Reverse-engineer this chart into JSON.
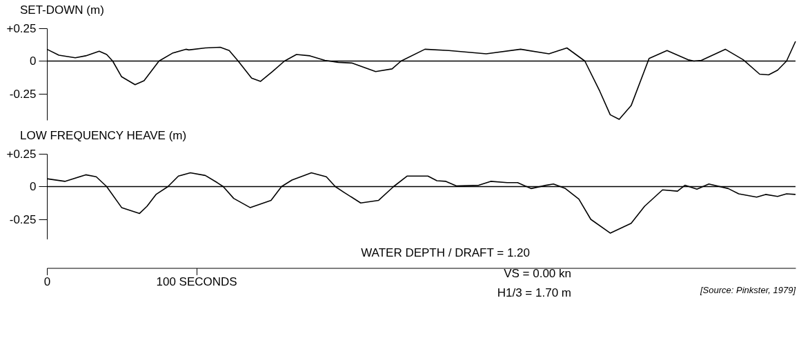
{
  "chart_data": [
    {
      "type": "line",
      "title": "SET-DOWN (m)",
      "x": [
        0,
        8,
        19,
        26,
        35,
        40,
        44,
        50,
        59,
        65,
        75,
        84,
        93,
        95,
        106,
        116,
        122,
        128,
        137,
        143,
        151,
        159,
        167,
        176,
        186,
        195,
        204,
        220,
        231,
        237,
        253,
        269,
        294,
        317,
        336,
        348,
        360,
        370,
        377,
        383,
        391,
        403,
        415,
        429,
        433,
        438,
        454,
        466,
        477,
        483,
        489,
        495,
        501
      ],
      "series": [
        {
          "color": "#000000",
          "values": [
            0.09,
            0.045,
            0.025,
            0.04,
            0.075,
            0.05,
            0,
            -0.12,
            -0.18,
            -0.15,
            0,
            0.06,
            0.09,
            0.085,
            0.1,
            0.105,
            0.08,
            0,
            -0.13,
            -0.155,
            -0.08,
            0,
            0.05,
            0.04,
            0.005,
            -0.01,
            -0.015,
            -0.08,
            -0.06,
            0,
            0.09,
            0.08,
            0.055,
            0.09,
            0.055,
            0.1,
            0,
            -0.23,
            -0.41,
            -0.445,
            -0.34,
            0.02,
            0.08,
            0.01,
            0,
            0.005,
            0.09,
            0.01,
            -0.1,
            -0.105,
            -0.07,
            0,
            0.15
          ]
        }
      ],
      "xlim": [
        0,
        501
      ],
      "ylim": [
        -0.45,
        0.25
      ],
      "yticks": [
        {
          "value": 0.25,
          "label": "+0.25"
        },
        0,
        -0.25
      ],
      "tick_labels": "y",
      "grid": false,
      "legend": false,
      "marker": "none",
      "line_style": "solid",
      "ref_lines": [
        {
          "axis": "y",
          "value": 0,
          "color": "#000000"
        }
      ]
    },
    {
      "type": "line",
      "title": "LOW FREQUENCY HEAVE (m)",
      "x": [
        0,
        12,
        26,
        33,
        40,
        50,
        62,
        67,
        73,
        81,
        88,
        96,
        106,
        114,
        118,
        125,
        136,
        150,
        157,
        164,
        177,
        187,
        193,
        199,
        210,
        222,
        232,
        241,
        255,
        261,
        267,
        274,
        289,
        297,
        308,
        315,
        324,
        334,
        339,
        347,
        356,
        364,
        377,
        391,
        400,
        412,
        422,
        427,
        435,
        443,
        456,
        463,
        475,
        481,
        489,
        495,
        501
      ],
      "series": [
        {
          "color": "#000000",
          "values": [
            0.06,
            0.04,
            0.09,
            0.075,
            0,
            -0.16,
            -0.205,
            -0.15,
            -0.06,
            0,
            0.08,
            0.105,
            0.085,
            0.03,
            0,
            -0.09,
            -0.16,
            -0.105,
            0,
            0.05,
            0.105,
            0.075,
            0,
            -0.045,
            -0.125,
            -0.105,
            0,
            0.08,
            0.08,
            0.045,
            0.04,
            0.005,
            0.01,
            0.04,
            0.03,
            0.03,
            -0.015,
            0.01,
            0.02,
            -0.015,
            -0.095,
            -0.25,
            -0.355,
            -0.28,
            -0.15,
            -0.025,
            -0.035,
            0.01,
            -0.02,
            0.02,
            -0.015,
            -0.055,
            -0.08,
            -0.06,
            -0.075,
            -0.055,
            -0.06
          ]
        }
      ],
      "xlim": [
        0,
        501
      ],
      "ylim": [
        -0.4,
        0.25
      ],
      "yticks": [
        {
          "value": 0.25,
          "label": "+0.25"
        },
        0,
        -0.25
      ],
      "xticks": [
        0,
        {
          "value": 100,
          "label": "100 SECONDS"
        }
      ],
      "grid": false,
      "legend": false,
      "marker": "none",
      "line_style": "solid",
      "ref_lines": [
        {
          "axis": "y",
          "value": 0,
          "color": "#000000"
        }
      ],
      "annotations": [
        "WATER DEPTH / DRAFT = 1.20",
        "VS = 0.00 kn",
        "H1/3 = 1.70 m",
        "[Source: Pinkster, 1979]"
      ]
    }
  ]
}
